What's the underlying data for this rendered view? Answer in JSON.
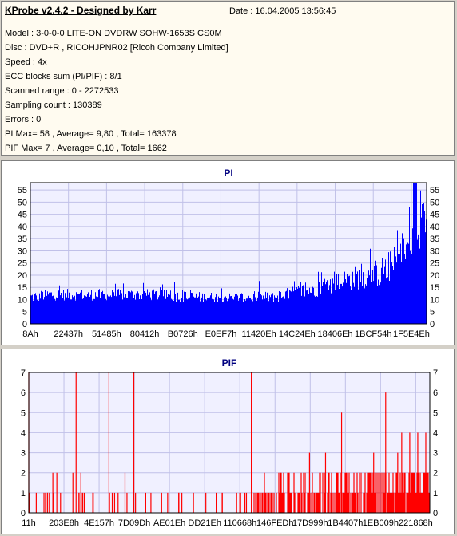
{
  "info": {
    "title": "KProbe v2.4.2 - Designed by Karr",
    "date": "Date : 16.04.2005 13:56:45",
    "lines": [
      "Model : 3-0-0-0 LITE-ON DVDRW SOHW-1653S CS0M",
      "Disc : DVD+R , RICOHJPNR02 [Ricoh Company Limited]",
      "Speed : 4x",
      "ECC blocks sum (PI/PIF) : 8/1",
      "Scanned range : 0 - 2272533",
      "Sampling count : 130389",
      "Errors : 0",
      "PI Max= 58 , Average= 9,80 , Total= 163378",
      "PIF Max= 7 , Average= 0,10 , Total= 1662"
    ]
  },
  "colors": {
    "pi": "#0000ff",
    "pif": "#ff0000",
    "plot_bg": "#f0f0ff",
    "grid": "#c0c0e8",
    "title": "#000080"
  },
  "chart_data": [
    {
      "type": "area",
      "title": "PI",
      "ylim": [
        0,
        58
      ],
      "yticks": [
        0,
        5,
        10,
        15,
        20,
        25,
        30,
        35,
        40,
        45,
        50,
        55
      ],
      "xlim": [
        0,
        2272533
      ],
      "xticks": [
        "8Ah",
        "22437h",
        "51485h",
        "80412h",
        "B0726h",
        "E0EF7h",
        "11420Eh",
        "14C24Eh",
        "18406Eh",
        "1BCF54h",
        "1F5E4Eh"
      ],
      "max": 58,
      "average": 9.8,
      "total": 163378,
      "profile": {
        "x_fraction": [
          0.0,
          0.05,
          0.1,
          0.2,
          0.3,
          0.4,
          0.5,
          0.6,
          0.65,
          0.7,
          0.75,
          0.8,
          0.85,
          0.88,
          0.9,
          0.92,
          0.94,
          0.96,
          0.98,
          1.0
        ],
        "typical": [
          11,
          12,
          12,
          12,
          12,
          11,
          11,
          11,
          12,
          14,
          16,
          18,
          20,
          21,
          23,
          25,
          28,
          33,
          40,
          44
        ],
        "spread": [
          4,
          4,
          4,
          4,
          4,
          4,
          3,
          4,
          5,
          6,
          7,
          8,
          9,
          10,
          11,
          12,
          13,
          14,
          16,
          14
        ]
      }
    },
    {
      "type": "bar",
      "title": "PIF",
      "ylim": [
        0,
        7
      ],
      "yticks": [
        0,
        1,
        2,
        3,
        4,
        5,
        6,
        7
      ],
      "xlim": [
        0,
        2272533
      ],
      "xticks": [
        "11h",
        "203E8h",
        "4E157h",
        "7D09Dh",
        "AE01Eh",
        "DD21Eh",
        "110668h",
        "146FEDh",
        "17D999h",
        "1B4407h",
        "1EB009h",
        "221868h"
      ],
      "max": 7,
      "average": 0.1,
      "total": 1662,
      "spikes": [
        {
          "x": 0.0,
          "v": 7
        },
        {
          "x": 0.118,
          "v": 7
        },
        {
          "x": 0.2,
          "v": 7
        },
        {
          "x": 0.262,
          "v": 7
        },
        {
          "x": 0.555,
          "v": 7
        },
        {
          "x": 0.78,
          "v": 5
        },
        {
          "x": 0.89,
          "v": 6
        },
        {
          "x": 0.95,
          "v": 4
        },
        {
          "x": 0.93,
          "v": 4
        },
        {
          "x": 0.97,
          "v": 4
        },
        {
          "x": 0.99,
          "v": 4
        },
        {
          "x": 0.92,
          "v": 3
        },
        {
          "x": 0.86,
          "v": 3
        },
        {
          "x": 0.74,
          "v": 3
        },
        {
          "x": 0.7,
          "v": 3
        },
        {
          "x": 0.06,
          "v": 2
        },
        {
          "x": 0.07,
          "v": 2
        },
        {
          "x": 0.11,
          "v": 2
        },
        {
          "x": 0.13,
          "v": 2
        },
        {
          "x": 0.24,
          "v": 2
        }
      ],
      "dense_region": {
        "start_fraction": 0.56,
        "end_fraction": 1.0,
        "base_level": 1,
        "upper_level": 2
      }
    }
  ]
}
